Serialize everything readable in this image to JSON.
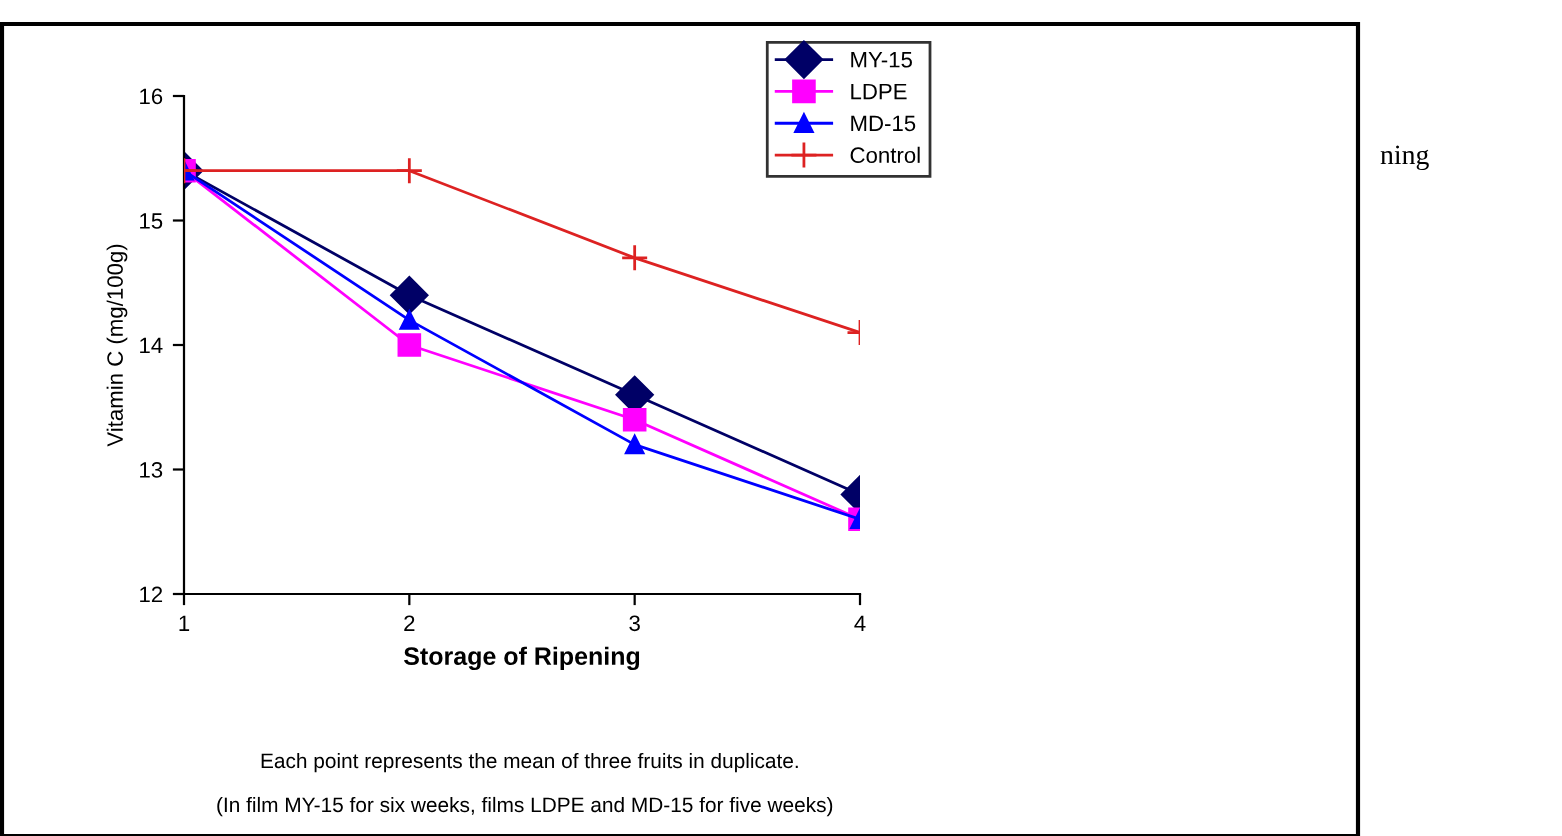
{
  "chart_data": {
    "type": "line",
    "xlabel": "Storage of Ripening",
    "ylabel": "Vitamin C (mg/100g)",
    "x": [
      1,
      2,
      3,
      4
    ],
    "xlim": [
      1,
      4
    ],
    "xticks": [
      1,
      2,
      3,
      4
    ],
    "ylim": [
      12,
      16
    ],
    "yticks": [
      12,
      13,
      14,
      15,
      16
    ],
    "grid": false,
    "legend": "top right",
    "line_style": "solid",
    "series": [
      {
        "name": "MY-15",
        "color": "#000066",
        "marker": "diamond",
        "values": [
          15.4,
          14.4,
          13.6,
          12.8
        ]
      },
      {
        "name": "LDPE",
        "color": "#ff00ff",
        "marker": "square",
        "values": [
          15.4,
          14.0,
          13.4,
          12.6
        ]
      },
      {
        "name": "MD-15",
        "color": "#0000ff",
        "marker": "triangle",
        "values": [
          15.4,
          14.2,
          13.2,
          12.6
        ]
      },
      {
        "name": "Control",
        "color": "#dd2222",
        "marker": "cross",
        "values": [
          15.4,
          15.4,
          14.7,
          14.1
        ]
      }
    ],
    "annotations": [
      "Each point represents the mean of three fruits in duplicate.",
      "(In film MY-15 for six weeks, films LDPE and MD-15 for five weeks)",
      "ning"
    ]
  }
}
